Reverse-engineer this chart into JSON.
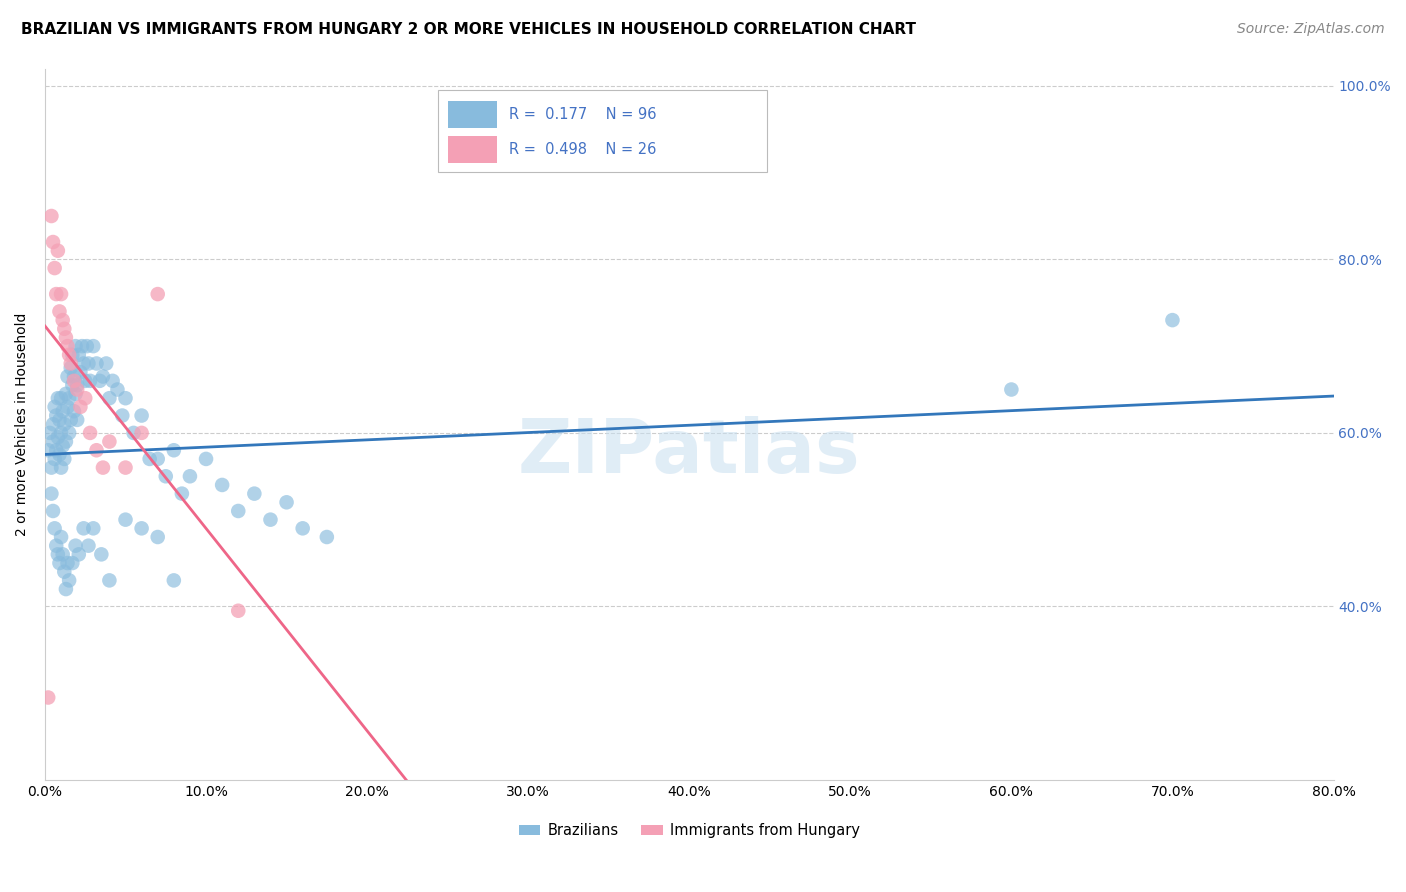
{
  "title": "BRAZILIAN VS IMMIGRANTS FROM HUNGARY 2 OR MORE VEHICLES IN HOUSEHOLD CORRELATION CHART",
  "source": "Source: ZipAtlas.com",
  "ylabel": "2 or more Vehicles in Household",
  "xlim": [
    0.0,
    0.8
  ],
  "ylim": [
    0.2,
    1.02
  ],
  "xticks": [
    0.0,
    0.1,
    0.2,
    0.3,
    0.4,
    0.5,
    0.6,
    0.7,
    0.8
  ],
  "xticklabels": [
    "0.0%",
    "10.0%",
    "20.0%",
    "30.0%",
    "40.0%",
    "50.0%",
    "60.0%",
    "70.0%",
    "80.0%"
  ],
  "yticks": [
    0.4,
    0.6,
    0.8,
    1.0
  ],
  "yticklabels": [
    "40.0%",
    "60.0%",
    "80.0%",
    "100.0%"
  ],
  "legend_labels": [
    "Brazilians",
    "Immigrants from Hungary"
  ],
  "legend_R_blue": "0.177",
  "legend_N_blue": "96",
  "legend_R_pink": "0.498",
  "legend_N_pink": "26",
  "watermark": "ZIPatlas",
  "blue_color": "#88bbdd",
  "pink_color": "#f4a0b5",
  "blue_line_color": "#3377bb",
  "pink_line_color": "#ee6688",
  "blue_scatter_x": [
    0.002,
    0.003,
    0.004,
    0.005,
    0.005,
    0.006,
    0.006,
    0.007,
    0.007,
    0.008,
    0.008,
    0.009,
    0.009,
    0.01,
    0.01,
    0.01,
    0.011,
    0.011,
    0.012,
    0.012,
    0.013,
    0.013,
    0.014,
    0.014,
    0.015,
    0.015,
    0.016,
    0.016,
    0.017,
    0.017,
    0.018,
    0.018,
    0.019,
    0.019,
    0.02,
    0.02,
    0.021,
    0.022,
    0.023,
    0.024,
    0.025,
    0.026,
    0.027,
    0.028,
    0.03,
    0.032,
    0.034,
    0.036,
    0.038,
    0.04,
    0.042,
    0.045,
    0.048,
    0.05,
    0.055,
    0.06,
    0.065,
    0.07,
    0.075,
    0.08,
    0.085,
    0.09,
    0.1,
    0.11,
    0.12,
    0.13,
    0.14,
    0.15,
    0.16,
    0.175,
    0.004,
    0.005,
    0.006,
    0.007,
    0.008,
    0.009,
    0.01,
    0.011,
    0.012,
    0.013,
    0.014,
    0.015,
    0.017,
    0.019,
    0.021,
    0.024,
    0.027,
    0.03,
    0.035,
    0.04,
    0.05,
    0.06,
    0.07,
    0.08,
    0.6,
    0.7
  ],
  "blue_scatter_y": [
    0.58,
    0.6,
    0.56,
    0.59,
    0.61,
    0.57,
    0.63,
    0.58,
    0.62,
    0.595,
    0.64,
    0.575,
    0.615,
    0.56,
    0.6,
    0.64,
    0.585,
    0.625,
    0.57,
    0.61,
    0.645,
    0.59,
    0.63,
    0.665,
    0.6,
    0.64,
    0.675,
    0.615,
    0.655,
    0.69,
    0.625,
    0.665,
    0.7,
    0.645,
    0.615,
    0.655,
    0.69,
    0.67,
    0.7,
    0.68,
    0.66,
    0.7,
    0.68,
    0.66,
    0.7,
    0.68,
    0.66,
    0.665,
    0.68,
    0.64,
    0.66,
    0.65,
    0.62,
    0.64,
    0.6,
    0.62,
    0.57,
    0.57,
    0.55,
    0.58,
    0.53,
    0.55,
    0.57,
    0.54,
    0.51,
    0.53,
    0.5,
    0.52,
    0.49,
    0.48,
    0.53,
    0.51,
    0.49,
    0.47,
    0.46,
    0.45,
    0.48,
    0.46,
    0.44,
    0.42,
    0.45,
    0.43,
    0.45,
    0.47,
    0.46,
    0.49,
    0.47,
    0.49,
    0.46,
    0.43,
    0.5,
    0.49,
    0.48,
    0.43,
    0.65,
    0.73
  ],
  "pink_scatter_x": [
    0.002,
    0.004,
    0.005,
    0.006,
    0.007,
    0.008,
    0.009,
    0.01,
    0.011,
    0.012,
    0.013,
    0.014,
    0.015,
    0.016,
    0.018,
    0.02,
    0.022,
    0.025,
    0.028,
    0.032,
    0.036,
    0.04,
    0.05,
    0.06,
    0.07,
    0.12
  ],
  "pink_scatter_y": [
    0.295,
    0.85,
    0.82,
    0.79,
    0.76,
    0.81,
    0.74,
    0.76,
    0.73,
    0.72,
    0.71,
    0.7,
    0.69,
    0.68,
    0.66,
    0.65,
    0.63,
    0.64,
    0.6,
    0.58,
    0.56,
    0.59,
    0.56,
    0.6,
    0.76,
    0.395
  ],
  "title_fontsize": 11,
  "source_fontsize": 10,
  "axis_label_color": "#4472c4"
}
